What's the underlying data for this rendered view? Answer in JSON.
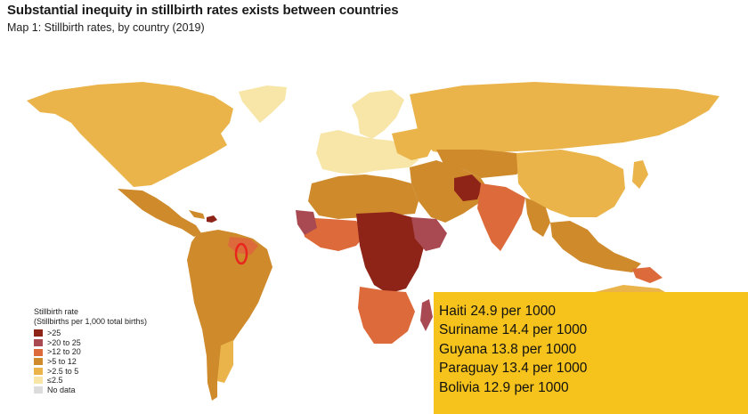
{
  "header": {
    "title": "Substantial inequity in stillbirth rates exists between countries",
    "subtitle": "Map 1: Stillbirth rates, by country (2019)"
  },
  "legend": {
    "title": "Stillbirth rate",
    "subtitle": "(Stillbirths per 1,000 total births)",
    "items": [
      {
        "label": ">25",
        "color": "#8e2418"
      },
      {
        "label": ">20 to 25",
        "color": "#a94a52"
      },
      {
        "label": ">12 to 20",
        "color": "#dd6a3a"
      },
      {
        "label": ">5 to 12",
        "color": "#cf8a2c"
      },
      {
        "label": ">2.5 to 5",
        "color": "#eab44a"
      },
      {
        "label": "≤2.5",
        "color": "#f7e6a8"
      },
      {
        "label": "No data",
        "color": "#dcdcdc"
      }
    ]
  },
  "callout": {
    "color": "#f6c21c",
    "rows": [
      "Haiti 24.9 per 1000",
      "Suriname 14.4 per 1000",
      "Guyana 13.8 per 1000",
      "Paraguay 13.4 per 1000",
      "Bolivia 12.9 per 1000"
    ]
  },
  "highlight": {
    "color": "#e8261e",
    "target": "Suriname / Guyana"
  }
}
